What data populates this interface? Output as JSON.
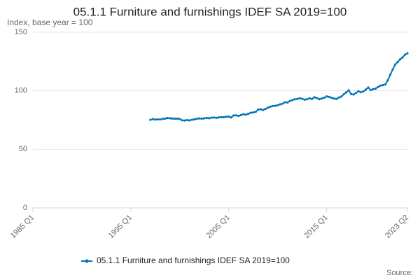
{
  "chart_data": {
    "type": "line",
    "title": "05.1.1 Furniture and furnishings IDEF SA 2019=100",
    "subtitle": "Index, base year = 100",
    "source": "Source:",
    "xlim": [
      "1985 Q1",
      "2023 Q2"
    ],
    "xticks": [
      "1985 Q1",
      "1995 Q1",
      "2005 Q1",
      "2015 Q1",
      "2023 Q2"
    ],
    "ylim": [
      0,
      150
    ],
    "yticks": [
      0,
      50,
      100,
      150
    ],
    "grid": true,
    "x": [
      "1997 Q1",
      "1997 Q2",
      "1997 Q3",
      "1997 Q4",
      "1998 Q1",
      "1998 Q2",
      "1998 Q3",
      "1998 Q4",
      "1999 Q1",
      "1999 Q2",
      "1999 Q3",
      "1999 Q4",
      "2000 Q1",
      "2000 Q2",
      "2000 Q3",
      "2000 Q4",
      "2001 Q1",
      "2001 Q2",
      "2001 Q3",
      "2001 Q4",
      "2002 Q1",
      "2002 Q2",
      "2002 Q3",
      "2002 Q4",
      "2003 Q1",
      "2003 Q2",
      "2003 Q3",
      "2003 Q4",
      "2004 Q1",
      "2004 Q2",
      "2004 Q3",
      "2004 Q4",
      "2005 Q1",
      "2005 Q2",
      "2005 Q3",
      "2005 Q4",
      "2006 Q1",
      "2006 Q2",
      "2006 Q3",
      "2006 Q4",
      "2007 Q1",
      "2007 Q2",
      "2007 Q3",
      "2007 Q4",
      "2008 Q1",
      "2008 Q2",
      "2008 Q3",
      "2008 Q4",
      "2009 Q1",
      "2009 Q2",
      "2009 Q3",
      "2009 Q4",
      "2010 Q1",
      "2010 Q2",
      "2010 Q3",
      "2010 Q4",
      "2011 Q1",
      "2011 Q2",
      "2011 Q3",
      "2011 Q4",
      "2012 Q1",
      "2012 Q2",
      "2012 Q3",
      "2012 Q4",
      "2013 Q1",
      "2013 Q2",
      "2013 Q3",
      "2013 Q4",
      "2014 Q1",
      "2014 Q2",
      "2014 Q3",
      "2014 Q4",
      "2015 Q1",
      "2015 Q2",
      "2015 Q3",
      "2015 Q4",
      "2016 Q1",
      "2016 Q2",
      "2016 Q3",
      "2016 Q4",
      "2017 Q1",
      "2017 Q2",
      "2017 Q3",
      "2017 Q4",
      "2018 Q1",
      "2018 Q2",
      "2018 Q3",
      "2018 Q4",
      "2019 Q1",
      "2019 Q2",
      "2019 Q3",
      "2019 Q4",
      "2020 Q1",
      "2020 Q2",
      "2020 Q3",
      "2020 Q4",
      "2021 Q1",
      "2021 Q2",
      "2021 Q3",
      "2021 Q4",
      "2022 Q1",
      "2022 Q2",
      "2022 Q3",
      "2022 Q4",
      "2023 Q1",
      "2023 Q2"
    ],
    "series": [
      {
        "name": "05.1.1 Furniture and furnishings IDEF SA 2019=100",
        "color": "#0075b5",
        "values": [
          75.2,
          75.8,
          75.4,
          75.6,
          75.5,
          76.0,
          76.2,
          76.8,
          76.5,
          76.3,
          76.1,
          76.2,
          75.9,
          74.8,
          74.6,
          75.0,
          74.7,
          75.2,
          75.6,
          76.0,
          76.4,
          76.1,
          76.5,
          76.8,
          76.6,
          77.0,
          77.2,
          76.9,
          77.3,
          77.5,
          77.4,
          77.8,
          78.0,
          77.2,
          78.9,
          79.0,
          78.6,
          79.2,
          80.0,
          79.6,
          80.4,
          81.2,
          81.5,
          82.0,
          83.8,
          84.2,
          83.6,
          84.5,
          85.6,
          86.4,
          87.0,
          87.2,
          87.6,
          88.4,
          89.0,
          90.2,
          90.0,
          91.2,
          92.0,
          92.8,
          93.0,
          93.6,
          93.2,
          92.4,
          92.8,
          93.6,
          93.0,
          94.4,
          93.8,
          92.8,
          93.4,
          94.0,
          95.2,
          94.8,
          94.0,
          93.4,
          93.0,
          94.2,
          95.0,
          97.0,
          98.6,
          100.4,
          97.2,
          96.8,
          98.2,
          99.6,
          98.8,
          99.4,
          101.0,
          102.8,
          100.6,
          101.4,
          101.8,
          103.2,
          104.4,
          104.8,
          105.4,
          109.0,
          113.6,
          118.2,
          122.4,
          124.6,
          126.8,
          128.4,
          130.8,
          132.0
        ]
      }
    ]
  }
}
